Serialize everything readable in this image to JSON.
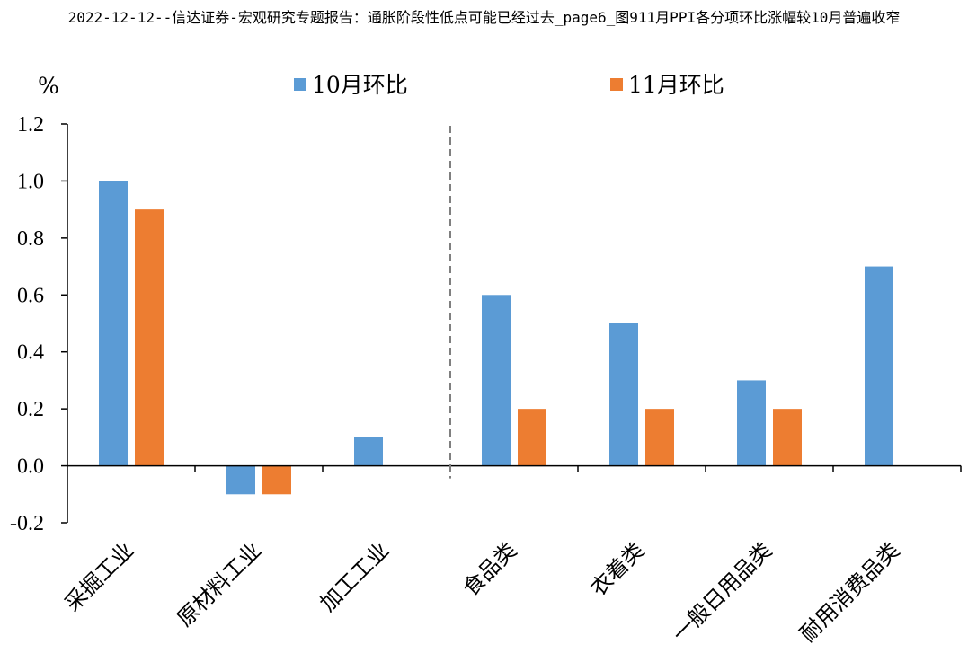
{
  "chart_data": {
    "type": "bar",
    "title": "2022-12-12--信达证券-宏观研究专题报告：通胀阶段性低点可能已经过去_page6_图911月PPI各分项环比涨幅较10月普遍收窄",
    "ylabel": "%",
    "xlabel": "",
    "ylim": [
      -0.2,
      1.2
    ],
    "yticks": [
      "-0.2",
      "0.0",
      "0.2",
      "0.4",
      "0.6",
      "0.8",
      "1.0",
      "1.2"
    ],
    "categories": [
      "采掘工业",
      "原材料工业",
      "加工工业",
      "食品类",
      "衣着类",
      "一般日用品类",
      "耐用消费品类"
    ],
    "series": [
      {
        "name": "10月环比",
        "color": "#5B9BD5",
        "values": [
          1.0,
          -0.1,
          0.1,
          0.6,
          0.5,
          0.3,
          0.7
        ]
      },
      {
        "name": "11月环比",
        "color": "#ED7D31",
        "values": [
          0.9,
          -0.1,
          0.0,
          0.2,
          0.2,
          0.2,
          0.0
        ]
      }
    ],
    "separator_after_category": 3,
    "grid": false,
    "legend_position": "top"
  }
}
